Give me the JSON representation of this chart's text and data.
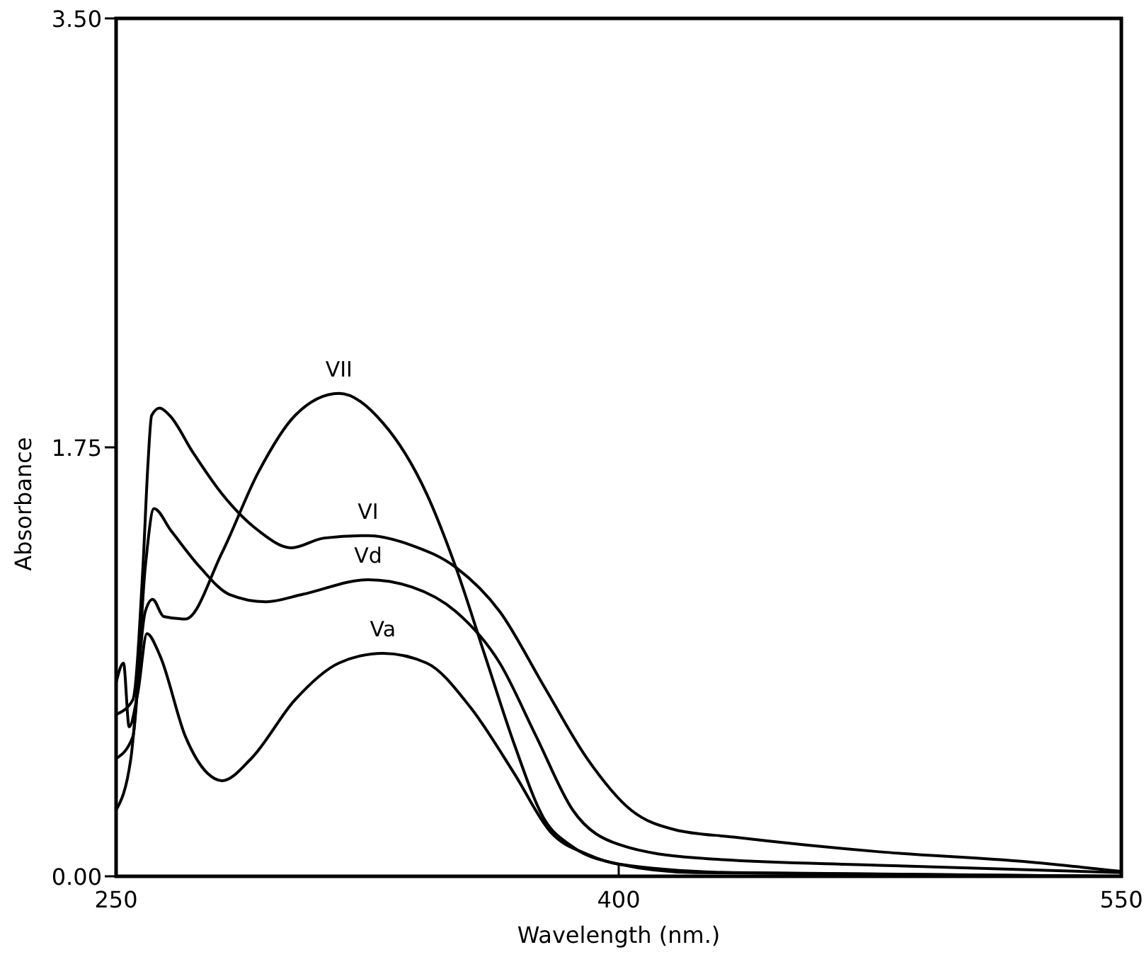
{
  "chart_data": {
    "type": "line",
    "xlabel": "Wavelength (nm.)",
    "ylabel": "Absorbance",
    "xlim": [
      250,
      550
    ],
    "ylim": [
      0,
      3.5
    ],
    "xticks": [
      250,
      400,
      550
    ],
    "yticks": [
      {
        "value": 0,
        "label": "0.00"
      },
      {
        "value": 1.75,
        "label": "1.75"
      },
      {
        "value": 3.5,
        "label": "3.50"
      }
    ],
    "grid": false,
    "marker": "none",
    "line_style": "solid",
    "series": [
      {
        "name": "VII",
        "color": "#000000",
        "x": [
          250,
          254.4,
          258.7,
          260.9,
          264.2,
          270.7,
          281.6,
          292.5,
          303.4,
          316.5,
          329.6,
          342.7,
          351.4,
          360.1,
          368.8,
          377.5,
          386.3,
          400,
          423,
          550
        ],
        "values": [
          0.27,
          0.48,
          1.08,
          1.13,
          1.06,
          1.05,
          1.32,
          1.65,
          1.88,
          1.97,
          1.85,
          1.56,
          1.26,
          0.9,
          0.54,
          0.24,
          0.12,
          0.05,
          0.015,
          0
        ]
      },
      {
        "name": "VI",
        "color": "#000000",
        "x": [
          250,
          255,
          258,
          259.5,
          260.6,
          263,
          266,
          272.9,
          281.6,
          292.5,
          302.3,
          312.1,
          325.2,
          338.3,
          351.4,
          364.5,
          377.5,
          390.6,
          403.7,
          416.8,
          434.2,
          477.8,
          521.4,
          550
        ],
        "values": [
          0.66,
          0.72,
          1.26,
          1.68,
          1.88,
          1.91,
          1.88,
          1.73,
          1.56,
          1.41,
          1.34,
          1.38,
          1.39,
          1.35,
          1.26,
          1.08,
          0.78,
          0.48,
          0.27,
          0.19,
          0.16,
          0.1,
          0.06,
          0.02
        ]
      },
      {
        "name": "Vd",
        "color": "#000000",
        "x": [
          250,
          255,
          258.7,
          261.3,
          266.4,
          275.1,
          283.8,
          294.7,
          305.6,
          325.2,
          338.3,
          351.4,
          364.5,
          375.4,
          386.3,
          400,
          423.3,
          477.8,
          550
        ],
        "values": [
          0.48,
          0.57,
          1.26,
          1.5,
          1.41,
          1.26,
          1.15,
          1.12,
          1.15,
          1.21,
          1.18,
          1.08,
          0.87,
          0.57,
          0.27,
          0.13,
          0.075,
          0.045,
          0.015
        ]
      },
      {
        "name": "Va",
        "color": "#000000",
        "x": [
          250,
          252.2,
          253.9,
          256.5,
          259.2,
          263.1,
          270.7,
          277.3,
          281.6,
          290.3,
          303.4,
          316.5,
          329.6,
          342.7,
          355.7,
          368.8,
          379.7,
          390.6,
          400,
          434.2,
          550
        ],
        "values": [
          0.79,
          0.87,
          0.61,
          0.75,
          0.99,
          0.9,
          0.57,
          0.42,
          0.39,
          0.48,
          0.72,
          0.87,
          0.91,
          0.87,
          0.69,
          0.42,
          0.18,
          0.09,
          0.05,
          0.015,
          0
        ]
      }
    ]
  }
}
